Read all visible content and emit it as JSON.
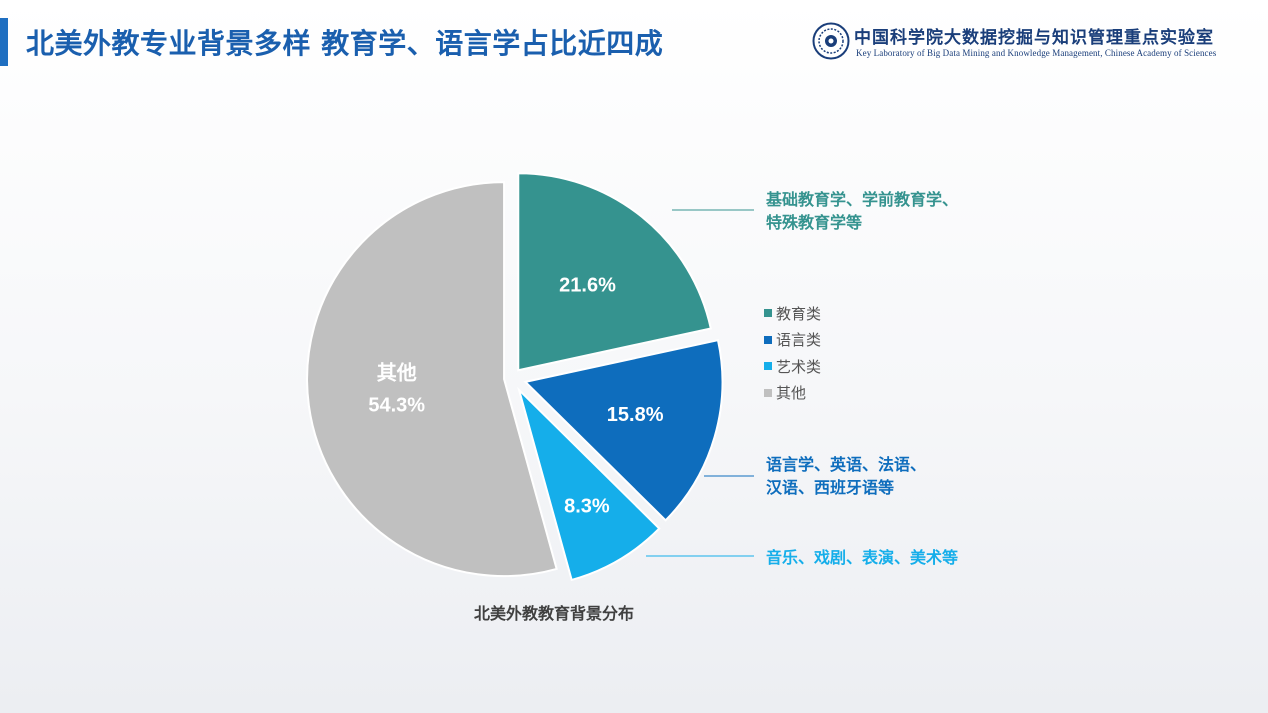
{
  "header": {
    "title": "北美外教专业背景多样  教育学、语言学占比近四成",
    "logo_cn": "中国科学院大数据挖掘与知识管理重点实验室",
    "logo_en": "Key Laboratory of Big Data Mining and Knowledge Management, Chinese Academy of Sciences",
    "logo_icon": "cas-emblem-icon"
  },
  "chart_data": {
    "type": "pie",
    "caption": "北美外教教育背景分布",
    "categories": [
      "教育类",
      "语言类",
      "艺术类",
      "其他"
    ],
    "values": [
      21.6,
      15.8,
      8.3,
      54.3
    ],
    "value_labels": [
      "21.6%",
      "15.8%",
      "8.3%",
      "54.3%"
    ],
    "slice_inner_names": [
      "",
      "",
      "",
      "其他"
    ],
    "colors": [
      "#35938f",
      "#0e6dbd",
      "#15aeea",
      "#c0c0c0"
    ],
    "exploded": true,
    "legend_position": "right",
    "annotations": [
      {
        "lines": [
          "基础教育学、学前教育学、",
          "特殊教育学等"
        ],
        "color": "#35938f"
      },
      {
        "lines": [
          "语言学、英语、法语、",
          "汉语、西班牙语等"
        ],
        "color": "#0e6dbd"
      },
      {
        "lines": [
          "音乐、戏剧、表演、美术等"
        ],
        "color": "#15aeea"
      }
    ]
  }
}
